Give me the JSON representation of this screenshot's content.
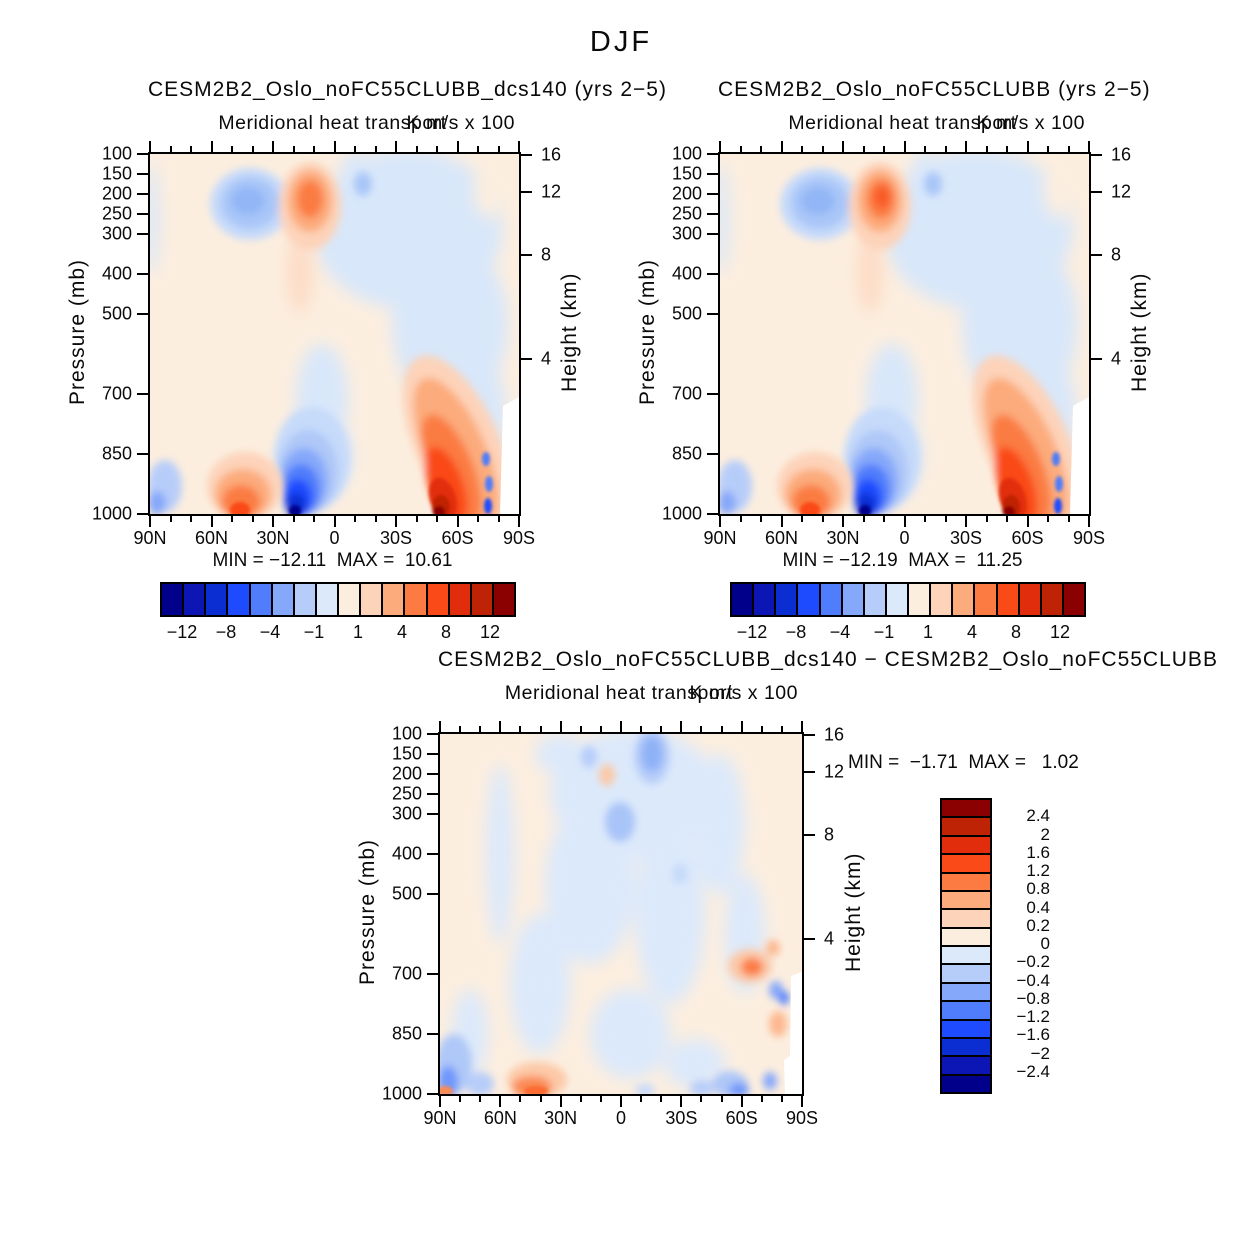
{
  "figure": {
    "title": "DJF"
  },
  "panels": [
    {
      "title": "CESM2B2_Oslo_noFC55CLUBB_dcs140 (yrs 2−5)",
      "subtitle": "Meridional heat transport",
      "units": "K m/s x 100",
      "ylabel": "Pressure (mb)",
      "ylabel_right": "Height (km)",
      "minmax": "MIN = −12.11  MAX =  10.61"
    },
    {
      "title": "CESM2B2_Oslo_noFC55CLUBB (yrs 2−5)",
      "subtitle": "Meridional heat transport",
      "units": "K m/s x 100",
      "ylabel": "Pressure (mb)",
      "ylabel_right": "Height (km)",
      "minmax": "MIN = −12.19  MAX =  11.25"
    },
    {
      "title": "CESM2B2_Oslo_noFC55CLUBB_dcs140 − CESM2B2_Oslo_noFC55CLUBB",
      "subtitle": "Meridional heat transport",
      "units": "K m/s x 100",
      "ylabel": "Pressure (mb)",
      "ylabel_right": "Height (km)",
      "minmax": "MIN =  −1.71  MAX =   1.02"
    }
  ],
  "axes": {
    "pressure_ticks": [
      "100",
      "150",
      "200",
      "250",
      "300",
      "400",
      "500",
      "700",
      "850",
      "1000"
    ],
    "height_ticks": [
      "16",
      "12",
      "8",
      "4"
    ],
    "lat_ticks": [
      "90N",
      "60N",
      "30N",
      "0",
      "30S",
      "60S",
      "90S"
    ]
  },
  "colorbar_horizontal": {
    "labels": [
      "−12",
      "−8",
      "−4",
      "−1",
      "1",
      "4",
      "8",
      "12"
    ],
    "colors": [
      "#00008B",
      "#0B16B4",
      "#0A2ED2",
      "#1F4BFF",
      "#4F7DFB",
      "#86A8FA",
      "#B7CDF9",
      "#DCE9FB",
      "#FCEEDF",
      "#FDD3B9",
      "#FCAB7C",
      "#FB7B43",
      "#FA4A17",
      "#E22D0D",
      "#BF2306",
      "#8B0000"
    ]
  },
  "colorbar_vertical": {
    "labels": [
      "2.4",
      "2",
      "1.6",
      "1.2",
      "0.8",
      "0.4",
      "0.2",
      "0",
      "−0.2",
      "−0.4",
      "−0.8",
      "−1.2",
      "−1.6",
      "−2",
      "−2.4"
    ],
    "colors": [
      "#8B0000",
      "#BF2306",
      "#E22D0D",
      "#FA4A17",
      "#FB7B43",
      "#FCAB7C",
      "#FDD3B9",
      "#FCEEDF",
      "#DCE9FB",
      "#B7CDF9",
      "#86A8FA",
      "#4F7DFB",
      "#1F4BFF",
      "#0A2ED2",
      "#0B16B4",
      "#00008B"
    ]
  },
  "chart_data": [
    {
      "type": "contour",
      "panel": "top_left",
      "season": "DJF",
      "title": "CESM2B2_Oslo_noFC55CLUBB_dcs140 (yrs 2−5)",
      "subtitle": "Meridional heat transport",
      "units": "K m/s x 100",
      "x_axis": {
        "tick_labels": [
          "90N",
          "60N",
          "30N",
          "0",
          "30S",
          "60S",
          "90S"
        ],
        "range_deg_lat": [
          90,
          -90
        ]
      },
      "y_axis_left": {
        "label": "Pressure (mb)",
        "ticks": [
          100,
          150,
          200,
          250,
          300,
          400,
          500,
          700,
          850,
          1000
        ],
        "scale": "linear",
        "range": [
          100,
          1000
        ]
      },
      "y_axis_right": {
        "label": "Height (km)",
        "ticks": [
          16,
          12,
          8,
          4
        ]
      },
      "min": -12.11,
      "max": 10.61,
      "contour_levels": [
        -12,
        -10,
        -8,
        -6,
        -4,
        -2,
        -1,
        0,
        1,
        2,
        4,
        6,
        8,
        10,
        12
      ],
      "features": [
        {
          "lat": 57,
          "pressure_mb": 215,
          "value": -4,
          "description": "light-blue negative cell, NH upper troposphere"
        },
        {
          "lat": 33,
          "pressure_mb": 200,
          "value": 6,
          "description": "orange positive cell, NH upper troposphere"
        },
        {
          "lat": 14,
          "pressure_mb": 1000,
          "value": -12.11,
          "description": "dark-blue minimum near tropical surface"
        },
        {
          "lat": 46,
          "pressure_mb": 990,
          "value": 8,
          "description": "orange-red maximum, NH mid-latitude surface"
        },
        {
          "lat": -60,
          "pressure_mb": 950,
          "value": 10.61,
          "description": "dark-red maximum, Southern Ocean low levels, diagonal band"
        },
        {
          "lat": -30,
          "pressure_mb": 400,
          "value": -1,
          "description": "broad weak negative region, SH troposphere"
        }
      ],
      "no_data_region": "white wedge below ~700 mb poleward of ~75S"
    },
    {
      "type": "contour",
      "panel": "top_right",
      "season": "DJF",
      "title": "CESM2B2_Oslo_noFC55CLUBB (yrs 2−5)",
      "subtitle": "Meridional heat transport",
      "units": "K m/s x 100",
      "x_axis": {
        "tick_labels": [
          "90N",
          "60N",
          "30N",
          "0",
          "30S",
          "60S",
          "90S"
        ],
        "range_deg_lat": [
          90,
          -90
        ]
      },
      "y_axis_left": {
        "label": "Pressure (mb)",
        "ticks": [
          100,
          150,
          200,
          250,
          300,
          400,
          500,
          700,
          850,
          1000
        ],
        "scale": "linear",
        "range": [
          100,
          1000
        ]
      },
      "y_axis_right": {
        "label": "Height (km)",
        "ticks": [
          16,
          12,
          8,
          4
        ]
      },
      "min": -12.19,
      "max": 11.25,
      "contour_levels": [
        -12,
        -10,
        -8,
        -6,
        -4,
        -2,
        -1,
        0,
        1,
        2,
        4,
        6,
        8,
        10,
        12
      ],
      "features": [
        {
          "lat": 57,
          "pressure_mb": 215,
          "value": -4,
          "description": "light-blue negative cell, NH upper troposphere"
        },
        {
          "lat": 33,
          "pressure_mb": 200,
          "value": 6,
          "description": "orange positive cell with stronger core"
        },
        {
          "lat": 14,
          "pressure_mb": 1000,
          "value": -12.19,
          "description": "dark-blue minimum near tropical surface"
        },
        {
          "lat": 46,
          "pressure_mb": 990,
          "value": 8,
          "description": "orange-red maximum, NH mid-latitude surface"
        },
        {
          "lat": -60,
          "pressure_mb": 950,
          "value": 11.25,
          "description": "dark-red maximum, Southern Ocean low levels, diagonal band"
        }
      ],
      "no_data_region": "white wedge below ~700 mb poleward of ~75S"
    },
    {
      "type": "contour",
      "panel": "bottom_difference",
      "season": "DJF",
      "title": "CESM2B2_Oslo_noFC55CLUBB_dcs140 − CESM2B2_Oslo_noFC55CLUBB",
      "subtitle": "Meridional heat transport",
      "units": "K m/s x 100",
      "x_axis": {
        "tick_labels": [
          "90N",
          "60N",
          "30N",
          "0",
          "30S",
          "60S",
          "90S"
        ],
        "range_deg_lat": [
          90,
          -90
        ]
      },
      "y_axis_left": {
        "label": "Pressure (mb)",
        "ticks": [
          100,
          150,
          200,
          250,
          300,
          400,
          500,
          700,
          850,
          1000
        ],
        "scale": "linear",
        "range": [
          100,
          1000
        ]
      },
      "y_axis_right": {
        "label": "Height (km)",
        "ticks": [
          16,
          12,
          8,
          4
        ]
      },
      "min": -1.71,
      "max": 1.02,
      "contour_levels": [
        -2.4,
        -2,
        -1.6,
        -1.2,
        -0.8,
        -0.4,
        -0.2,
        0,
        0.2,
        0.4,
        0.8,
        1.2,
        1.6,
        2,
        2.4
      ],
      "features": [
        {
          "lat": 15,
          "pressure_mb": 160,
          "value": -0.6,
          "description": "blue cell near tropical tropopause"
        },
        {
          "lat": 33,
          "pressure_mb": 200,
          "value": 0.3,
          "description": "small orange dot"
        },
        {
          "lat": 0,
          "pressure_mb": 330,
          "value": -0.4,
          "description": "blue patch near equator mid-level"
        },
        {
          "lat": 88,
          "pressure_mb": 950,
          "value": -1.2,
          "description": "blue patches near North Pole surface"
        },
        {
          "lat": 45,
          "pressure_mb": 990,
          "value": 0.8,
          "description": "orange patch at NH mid-latitude surface"
        },
        {
          "lat": -65,
          "pressure_mb": 700,
          "value": 0.6,
          "description": "orange blob near Antarctic coast 700 mb"
        },
        {
          "lat": -60,
          "pressure_mb": 980,
          "value": -1.0,
          "description": "blue patches Southern Ocean surface"
        }
      ],
      "background": "mottled weak differences mostly between −0.4 and +0.4",
      "no_data_region": "white notch below ~700 mb poleward of ~78S"
    }
  ]
}
